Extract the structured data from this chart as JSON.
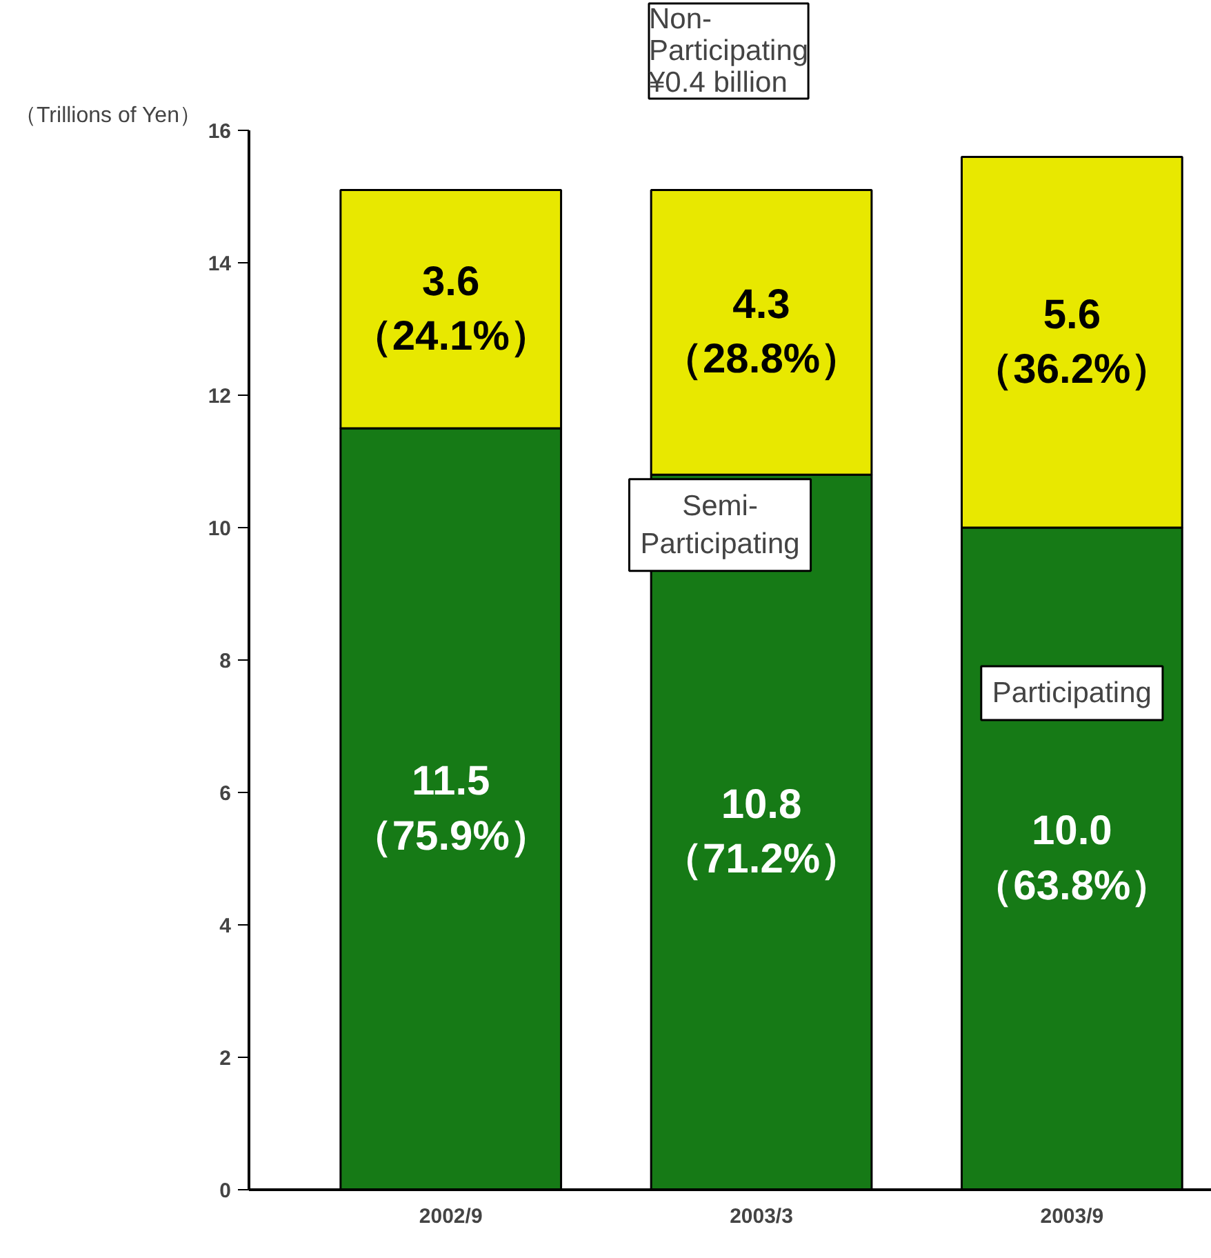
{
  "chart_data": {
    "type": "bar",
    "stacked": true,
    "ylabel": "（Trillions of Yen）",
    "categories": [
      "2002/9",
      "2003/3",
      "2003/9"
    ],
    "series": [
      {
        "name": "Participating",
        "color": "#167a16",
        "values": [
          11.5,
          10.8,
          10.0
        ],
        "value_labels": [
          "11.5\n（75.9%）",
          "10.8\n（71.2%）",
          "10.0\n（63.8%）"
        ]
      },
      {
        "name": "Semi-\nParticipating",
        "color": "#e8e800",
        "values": [
          3.6,
          4.3,
          5.6
        ],
        "value_labels": [
          "3.6\n（24.1%）",
          "4.3\n（28.8%）",
          "5.6\n（36.2%）"
        ]
      }
    ],
    "annotations": [
      "Non-\nParticipating\n¥0.4 billion"
    ],
    "ylim": [
      0,
      16
    ],
    "yticks": [
      0,
      2,
      4,
      6,
      8,
      10,
      12,
      14,
      16
    ],
    "grid": false
  }
}
